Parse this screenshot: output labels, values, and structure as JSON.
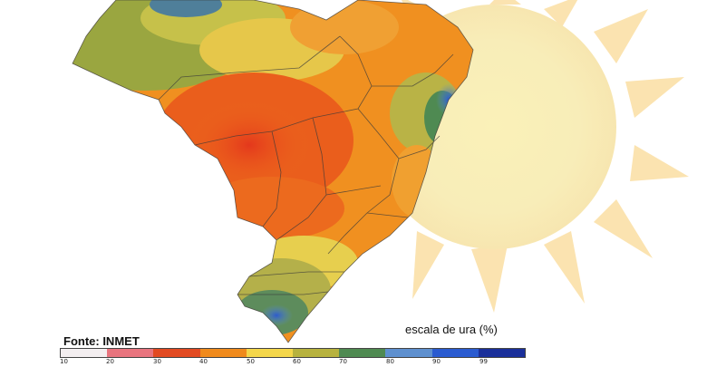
{
  "source": "Fonte: INMET",
  "scale_title": "escala de ura (%)",
  "legend": {
    "colors": [
      "#f3eef0",
      "#e8747e",
      "#e24a22",
      "#f08a1c",
      "#f4d64a",
      "#b7b23e",
      "#4f8a52",
      "#5e90cf",
      "#2a5bd0",
      "#1a2f9a"
    ],
    "ticks": [
      "10",
      "20",
      "30",
      "40",
      "50",
      "60",
      "70",
      "80",
      "90",
      "99"
    ]
  },
  "colors": {
    "sun": "#fbe7b4",
    "sun_core": "#f8edb8",
    "border": "#3a3a3a"
  }
}
